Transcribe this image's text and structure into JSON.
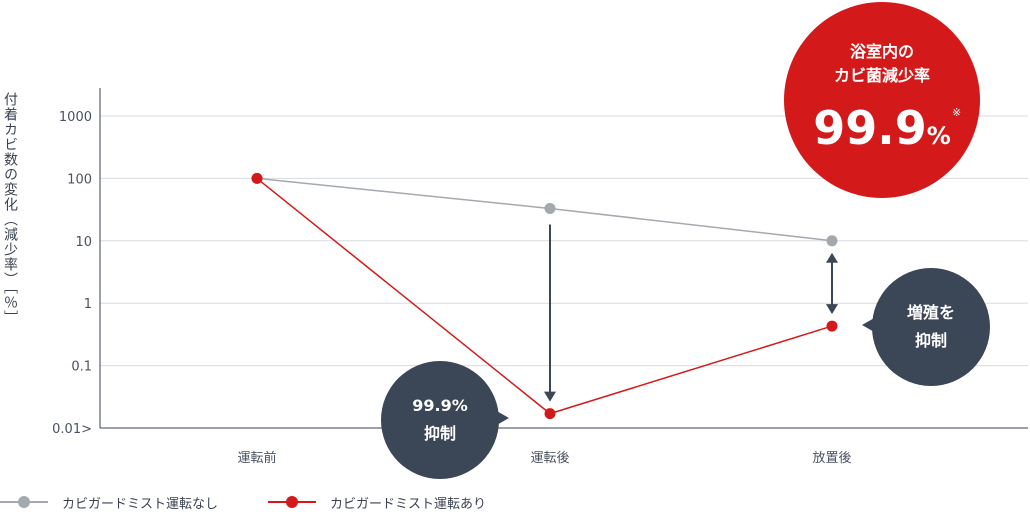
{
  "chart_data": {
    "type": "line",
    "ylabel": "付着カビ数の変化（減少率）［％］",
    "yscale": "log",
    "ylim": [
      0.01,
      1000
    ],
    "yticks": [
      "1000",
      "100",
      "10",
      "1",
      "0.1",
      "0.01>"
    ],
    "yticks_values": [
      1000,
      100,
      10,
      1,
      0.1,
      0.01
    ],
    "categories": [
      "運転前",
      "運転後",
      "放置後"
    ],
    "grid": true,
    "legend_position": "bottom-left",
    "series": [
      {
        "name": "カビガードミスト運転なし",
        "color": "#a4a9b0",
        "values": [
          100,
          33,
          10
        ]
      },
      {
        "name": "カビガードミスト運転あり",
        "color": "#d3191a",
        "values": [
          100,
          0.017,
          0.43
        ]
      }
    ],
    "annotations": {
      "headline": {
        "line1": "浴室内の",
        "line2": "カビ菌減少率",
        "value": "99.9",
        "unit": "%",
        "note": "※"
      },
      "bubble_after": {
        "line1": "99.9%",
        "line2": "抑制"
      },
      "bubble_left": {
        "line1": "増殖を",
        "line2": "抑制"
      }
    }
  },
  "colors": {
    "axis": "#3a4250",
    "grid": "#d8dbe0",
    "accent_red": "#d3191a",
    "bubble_dark": "#3b4656",
    "gray_series": "#a4a9b0"
  }
}
